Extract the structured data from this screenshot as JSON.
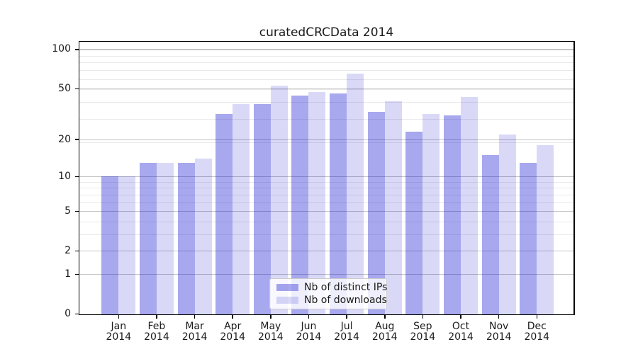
{
  "chart_data": {
    "type": "bar",
    "title": "curatedCRCData 2014",
    "categories": [
      "Jan",
      "Feb",
      "Mar",
      "Apr",
      "May",
      "Jun",
      "Jul",
      "Aug",
      "Sep",
      "Oct",
      "Nov",
      "Dec"
    ],
    "category_year": "2014",
    "series": [
      {
        "name": "Nb of distinct IPs",
        "color": "rgba(0,0,204,0.34)",
        "color_hex": "#a8a8ee",
        "values": [
          10,
          13,
          13,
          32,
          38,
          44,
          46,
          33,
          23,
          31,
          15,
          13
        ]
      },
      {
        "name": "Nb of downloads",
        "color": "rgba(0,0,204,0.15)",
        "color_hex": "#d9d9f7",
        "values": [
          10,
          13,
          14,
          38,
          53,
          47,
          65,
          40,
          32,
          43,
          22,
          18
        ]
      }
    ],
    "yscale": "log1p",
    "ylim": [
      0,
      114.7
    ],
    "yticks": [
      100,
      50,
      20,
      10,
      5,
      2,
      1,
      0
    ],
    "yticks_minor": [
      3,
      4,
      6,
      7,
      8,
      9,
      19,
      29,
      39,
      49,
      59,
      69,
      79,
      89,
      99
    ],
    "xlabel": "",
    "ylabel": "",
    "grid": true,
    "legend_position": "lower center"
  }
}
